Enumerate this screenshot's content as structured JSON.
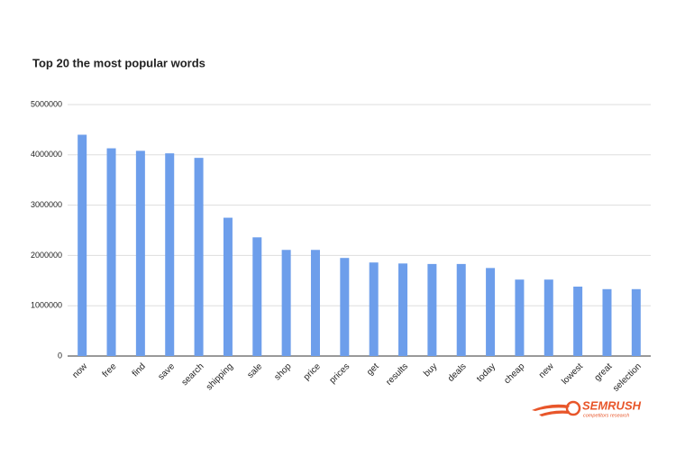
{
  "chart_data": {
    "type": "bar",
    "title": "Top 20 the most popular words",
    "categories": [
      "now",
      "free",
      "find",
      "save",
      "search",
      "shipping",
      "sale",
      "shop",
      "price",
      "prices",
      "get",
      "results",
      "buy",
      "deals",
      "today",
      "cheap",
      "new",
      "lowest",
      "great",
      "selection"
    ],
    "values": [
      4400000,
      4130000,
      4080000,
      4030000,
      3940000,
      2750000,
      2360000,
      2110000,
      2110000,
      1950000,
      1860000,
      1840000,
      1830000,
      1830000,
      1750000,
      1520000,
      1520000,
      1380000,
      1330000,
      1330000
    ],
    "color": "#6d9eeb",
    "ylim": [
      0,
      5000000
    ],
    "yticks": [
      0,
      1000000,
      2000000,
      3000000,
      4000000,
      5000000
    ],
    "grid": true
  },
  "logo": {
    "name": "SEMRUSH",
    "tagline": "competitors research"
  }
}
